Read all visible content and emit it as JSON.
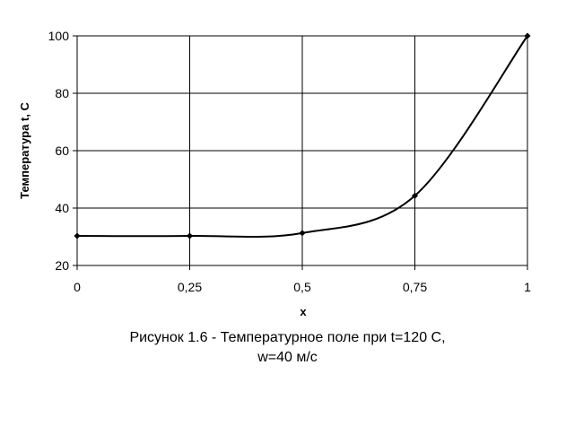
{
  "chart_data": {
    "type": "line",
    "xlabel": "x",
    "ylabel": "Температура t, С",
    "xlim": [
      0,
      1
    ],
    "ylim": [
      20,
      100
    ],
    "x_ticks": [
      0,
      0.25,
      0.5,
      0.75,
      1
    ],
    "x_tick_labels": [
      "0",
      "0,25",
      "0,5",
      "0,75",
      "1"
    ],
    "y_ticks": [
      20,
      40,
      60,
      80,
      100
    ],
    "y_tick_labels": [
      "20",
      "40",
      "60",
      "80",
      "100"
    ],
    "grid": true,
    "legend": "none",
    "series": [
      {
        "x": [
          0,
          0.25,
          0.5,
          0.75,
          1
        ],
        "y": [
          30.3,
          30.3,
          31.3,
          44.3,
          100
        ],
        "line_color": "#000000",
        "marker_color": "#000000"
      }
    ]
  },
  "caption": {
    "line1": "Рисунок 1.6 - Температурное поле при t=120 С,",
    "line2": "w=40 м/с"
  }
}
